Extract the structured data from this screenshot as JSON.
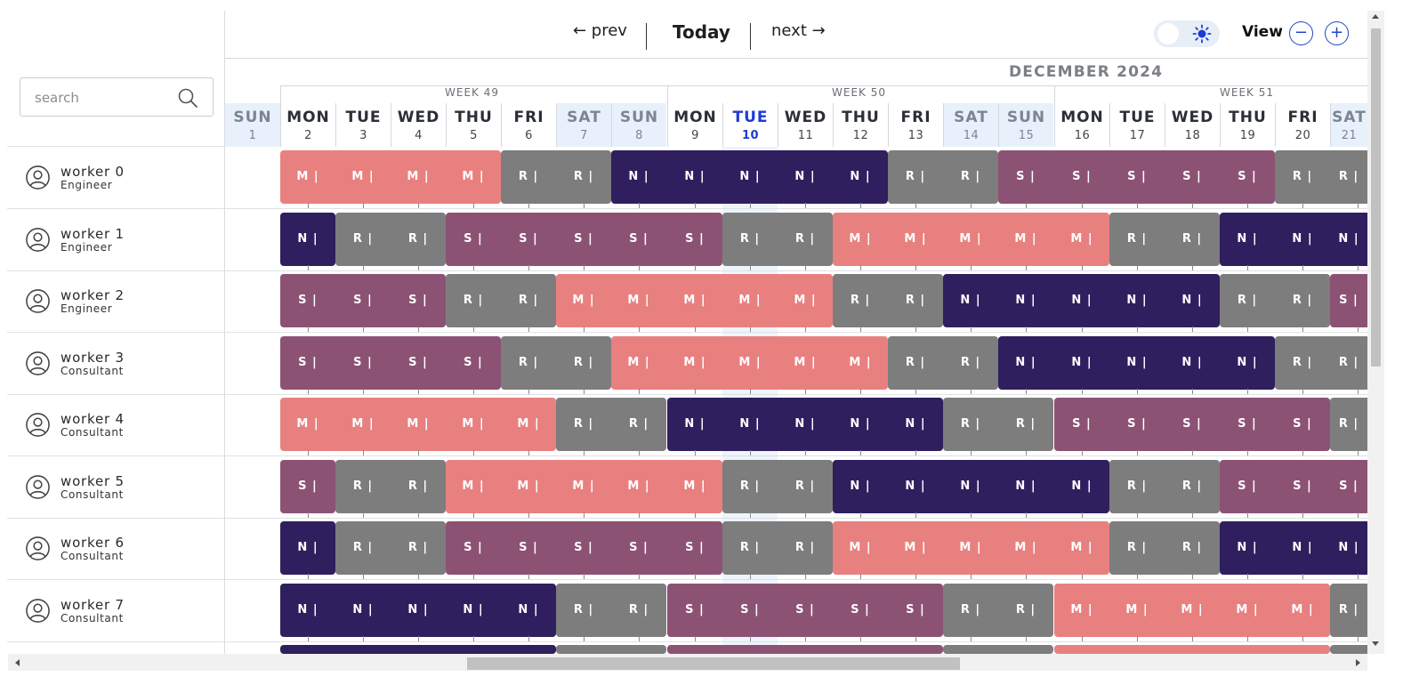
{
  "search": {
    "placeholder": "search"
  },
  "nav": {
    "prev": "← prev",
    "today": "Today",
    "next": "next →"
  },
  "view": {
    "label": "View",
    "zoom_out": "−",
    "zoom_in": "+"
  },
  "month_label": "DECEMBER 2024",
  "weeks": [
    "WEEK 49",
    "WEEK 50",
    "WEEK 51"
  ],
  "days": [
    {
      "name": "SUN",
      "num": "1",
      "type": "weekend"
    },
    {
      "name": "MON",
      "num": "2",
      "type": ""
    },
    {
      "name": "TUE",
      "num": "3",
      "type": ""
    },
    {
      "name": "WED",
      "num": "4",
      "type": ""
    },
    {
      "name": "THU",
      "num": "5",
      "type": ""
    },
    {
      "name": "FRI",
      "num": "6",
      "type": ""
    },
    {
      "name": "SAT",
      "num": "7",
      "type": "weekend"
    },
    {
      "name": "SUN",
      "num": "8",
      "type": "weekend"
    },
    {
      "name": "MON",
      "num": "9",
      "type": ""
    },
    {
      "name": "TUE",
      "num": "10",
      "type": "today"
    },
    {
      "name": "WED",
      "num": "11",
      "type": ""
    },
    {
      "name": "THU",
      "num": "12",
      "type": ""
    },
    {
      "name": "FRI",
      "num": "13",
      "type": ""
    },
    {
      "name": "SAT",
      "num": "14",
      "type": "weekend"
    },
    {
      "name": "SUN",
      "num": "15",
      "type": "weekend"
    },
    {
      "name": "MON",
      "num": "16",
      "type": ""
    },
    {
      "name": "TUE",
      "num": "17",
      "type": ""
    },
    {
      "name": "WED",
      "num": "18",
      "type": ""
    },
    {
      "name": "THU",
      "num": "19",
      "type": ""
    },
    {
      "name": "FRI",
      "num": "20",
      "type": ""
    },
    {
      "name": "SAT",
      "num": "21",
      "type": "weekend"
    }
  ],
  "shift_colors": {
    "M": "#e98080",
    "R": "#7d7d7d",
    "N": "#2f1f5e",
    "S": "#8c5273"
  },
  "shift_suffix": " |",
  "workers": [
    {
      "name": "worker 0",
      "role": "Engineer",
      "shifts": [
        "",
        "M",
        "M",
        "M",
        "M",
        "R",
        "R",
        "N",
        "N",
        "N",
        "N",
        "N",
        "R",
        "R",
        "S",
        "S",
        "S",
        "S",
        "S",
        "R",
        "R"
      ]
    },
    {
      "name": "worker 1",
      "role": "Engineer",
      "shifts": [
        "",
        "N",
        "R",
        "R",
        "S",
        "S",
        "S",
        "S",
        "S",
        "R",
        "R",
        "M",
        "M",
        "M",
        "M",
        "M",
        "R",
        "R",
        "N",
        "N",
        "N"
      ]
    },
    {
      "name": "worker 2",
      "role": "Engineer",
      "shifts": [
        "",
        "S",
        "S",
        "S",
        "R",
        "R",
        "M",
        "M",
        "M",
        "M",
        "M",
        "R",
        "R",
        "N",
        "N",
        "N",
        "N",
        "N",
        "R",
        "R",
        "S"
      ]
    },
    {
      "name": "worker 3",
      "role": "Consultant",
      "shifts": [
        "",
        "S",
        "S",
        "S",
        "S",
        "R",
        "R",
        "M",
        "M",
        "M",
        "M",
        "M",
        "R",
        "R",
        "N",
        "N",
        "N",
        "N",
        "N",
        "R",
        "R"
      ]
    },
    {
      "name": "worker 4",
      "role": "Consultant",
      "shifts": [
        "",
        "M",
        "M",
        "M",
        "M",
        "M",
        "R",
        "R",
        "N",
        "N",
        "N",
        "N",
        "N",
        "R",
        "R",
        "S",
        "S",
        "S",
        "S",
        "S",
        "R"
      ]
    },
    {
      "name": "worker 5",
      "role": "Consultant",
      "shifts": [
        "",
        "S",
        "R",
        "R",
        "M",
        "M",
        "M",
        "M",
        "M",
        "R",
        "R",
        "N",
        "N",
        "N",
        "N",
        "N",
        "R",
        "R",
        "S",
        "S",
        "S"
      ]
    },
    {
      "name": "worker 6",
      "role": "Consultant",
      "shifts": [
        "",
        "N",
        "R",
        "R",
        "S",
        "S",
        "S",
        "S",
        "S",
        "R",
        "R",
        "M",
        "M",
        "M",
        "M",
        "M",
        "R",
        "R",
        "N",
        "N",
        "N"
      ]
    },
    {
      "name": "worker 7",
      "role": "Consultant",
      "shifts": [
        "",
        "N",
        "N",
        "N",
        "N",
        "N",
        "R",
        "R",
        "S",
        "S",
        "S",
        "S",
        "S",
        "R",
        "R",
        "M",
        "M",
        "M",
        "M",
        "M",
        "R"
      ]
    },
    {
      "name": "",
      "role": "",
      "shifts": [
        "",
        "N",
        "N",
        "N",
        "N",
        "N",
        "R",
        "R",
        "S",
        "S",
        "S",
        "S",
        "S",
        "R",
        "R",
        "M",
        "M",
        "M",
        "M",
        "M",
        "R"
      ]
    }
  ]
}
